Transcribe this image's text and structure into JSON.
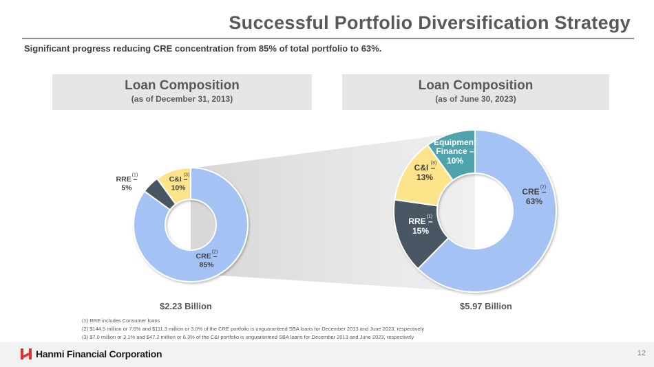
{
  "header": {
    "title": "Successful Portfolio Diversification Strategy",
    "subtitle": "Significant progress reducing CRE concentration from 85% of total portfolio to 63%."
  },
  "panels": [
    {
      "title": "Loan Composition",
      "subtitle": "(as of December 31, 2013)",
      "total": "$2.23 Billion"
    },
    {
      "title": "Loan Composition",
      "subtitle": "(as of June 30, 2023)",
      "total": "$5.97 Billion"
    }
  ],
  "chart_data": [
    {
      "type": "pie",
      "title": "Loan Composition",
      "subtitle": "(as of December 31, 2013)",
      "total_label": "$2.23 Billion",
      "slices": [
        {
          "label": "CRE –",
          "sup": "(2)",
          "value_label": "85%",
          "value": 85,
          "color": "#a4c2f4"
        },
        {
          "label": "RRE –",
          "sup": "(1)",
          "value_label": "5%",
          "value": 5,
          "color": "#4a5763"
        },
        {
          "label": "C&I –",
          "sup": "(3)",
          "value_label": "10%",
          "value": 10,
          "color": "#fde48a"
        }
      ]
    },
    {
      "type": "pie",
      "title": "Loan Composition",
      "subtitle": "(as of June 30, 2023)",
      "total_label": "$5.97 Billion",
      "slices": [
        {
          "label": "CRE –",
          "sup": "(2)",
          "value_label": "63%",
          "value": 63,
          "color": "#a4c2f4"
        },
        {
          "label": "RRE –",
          "sup": "(1)",
          "value_label": "15%",
          "value": 15,
          "color": "#4a5763"
        },
        {
          "label": "C&I –",
          "sup": "(3)",
          "value_label": "13%",
          "value": 13,
          "color": "#fde48a"
        },
        {
          "label": "Equipment Finance –",
          "sup": "",
          "value_label": "10%",
          "value": 10,
          "color": "#4fa3ad"
        }
      ]
    }
  ],
  "footnotes": [
    "(1)   RRE includes Consumer loans",
    "(2)   $144.5 million or 7.6% and $111.3 million or 3.0% of the CRE portfolio is unguaranteed SBA loans for December 2013 and June 2023, respectively",
    "(3)   $7.0 million or 3.1% and $47.2 million or 6.3% of the C&I portfolio is unguaranteed SBA loans for December 2013 and June 2023, respectively"
  ],
  "footer": {
    "company": "Hanmi Financial Corporation",
    "page_number": "12",
    "logo_icon": "hanmi-logo-icon",
    "logo_color": "#e0312d"
  }
}
